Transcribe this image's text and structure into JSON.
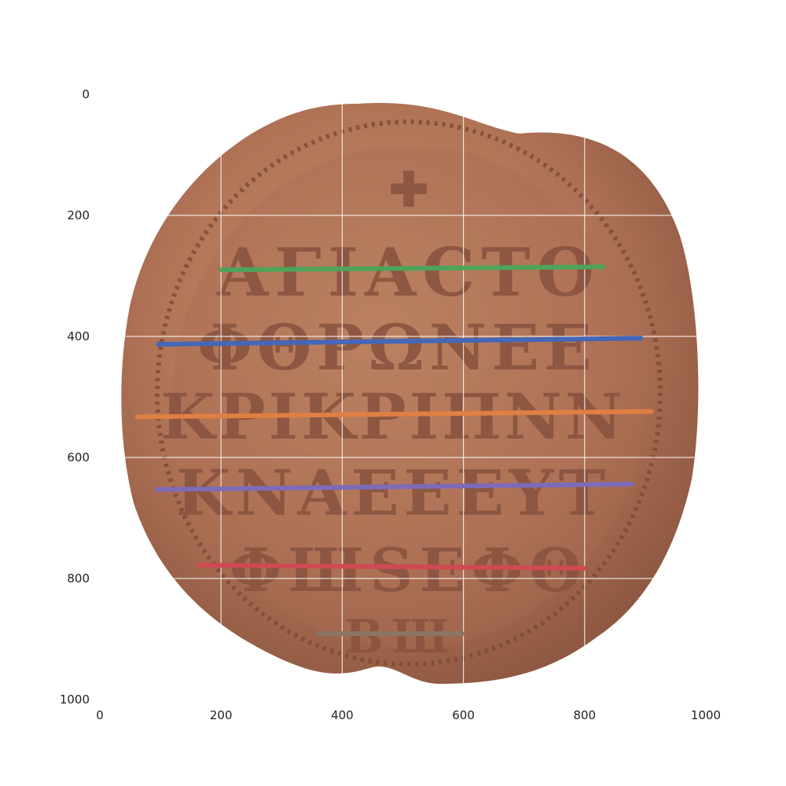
{
  "chart_data": {
    "type": "line",
    "title": "",
    "xlabel": "",
    "ylabel": "",
    "xlim": [
      0,
      1000
    ],
    "ylim": [
      1000,
      0
    ],
    "y_inverted": true,
    "grid": true,
    "background": "photograph of a lead seal with embossed Greek lettering",
    "x_ticks": [
      "0",
      "200",
      "400",
      "600",
      "800",
      "1000"
    ],
    "y_ticks": [
      "0",
      "200",
      "400",
      "600",
      "800",
      "1000"
    ],
    "series": [
      {
        "color": "#4fa35b",
        "x": [
          200,
          830
        ],
        "y": [
          290,
          285
        ]
      },
      {
        "color": "#4467b8",
        "x": [
          97,
          893
        ],
        "y": [
          413,
          403
        ]
      },
      {
        "color": "#df7f43",
        "x": [
          62,
          910
        ],
        "y": [
          533,
          524
        ]
      },
      {
        "color": "#7e6bb8",
        "x": [
          95,
          878
        ],
        "y": [
          653,
          644
        ]
      },
      {
        "color": "#cf4a52",
        "x": [
          163,
          800
        ],
        "y": [
          778,
          783
        ]
      },
      {
        "color": "#8a7564",
        "x": [
          360,
          598
        ],
        "y": [
          891,
          891
        ]
      }
    ]
  }
}
